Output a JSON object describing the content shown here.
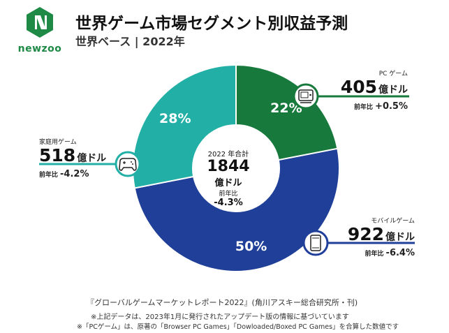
{
  "header": {
    "title": "世界ゲーム市場セグメント別収益予測",
    "subtitle": "世界ベース | 2022年",
    "brand": "newzoo"
  },
  "colors": {
    "pc": "#177a3c",
    "mobile": "#1f3f98",
    "console": "#22b0a6",
    "brand_green": "#1f8a46"
  },
  "center": {
    "label": "2022 年合計",
    "total": "1844",
    "unit": "億ドル",
    "yoy_label": "前年比",
    "yoy": "-4.3%"
  },
  "segments": {
    "pc": {
      "name": "PC ゲーム",
      "value": "405",
      "unit": "億ドル",
      "yoy_label": "前年比",
      "yoy": "+0.5%",
      "share": "22%",
      "icon": "pc-monitor-icon"
    },
    "mobile": {
      "name": "モバイルゲーム",
      "value": "922",
      "unit": "億ドル",
      "yoy_label": "前年比",
      "yoy": "-6.4%",
      "share": "50%",
      "icon": "smartphone-icon"
    },
    "console": {
      "name": "家庭用ゲーム",
      "value": "518",
      "unit": "億ドル",
      "yoy_label": "前年比",
      "yoy": "-4.2%",
      "share": "28%",
      "icon": "gamepad-icon"
    }
  },
  "chart_data": {
    "type": "pie",
    "title": "世界ゲーム市場セグメント別収益予測",
    "subtitle": "世界ベース | 2022年",
    "unit": "億ドル",
    "total": 1844,
    "categories": [
      "PC ゲーム",
      "モバイルゲーム",
      "家庭用ゲーム"
    ],
    "values": [
      405,
      922,
      518
    ],
    "percentages": [
      22,
      50,
      28
    ],
    "yoy": [
      "+0.5%",
      "-6.4%",
      "-4.2%"
    ]
  },
  "footer": {
    "source": "『グローバルゲームマーケットレポート2022』(角川アスキー総合研究所・刊)",
    "note1": "※上記データは、2023年1月に発行されたアップデート版の情報に基づいています",
    "note2": "※「PCゲーム」は、原著の「Browser PC Games」「Dowloaded/Boxed PC Games」を合算した数値です"
  }
}
